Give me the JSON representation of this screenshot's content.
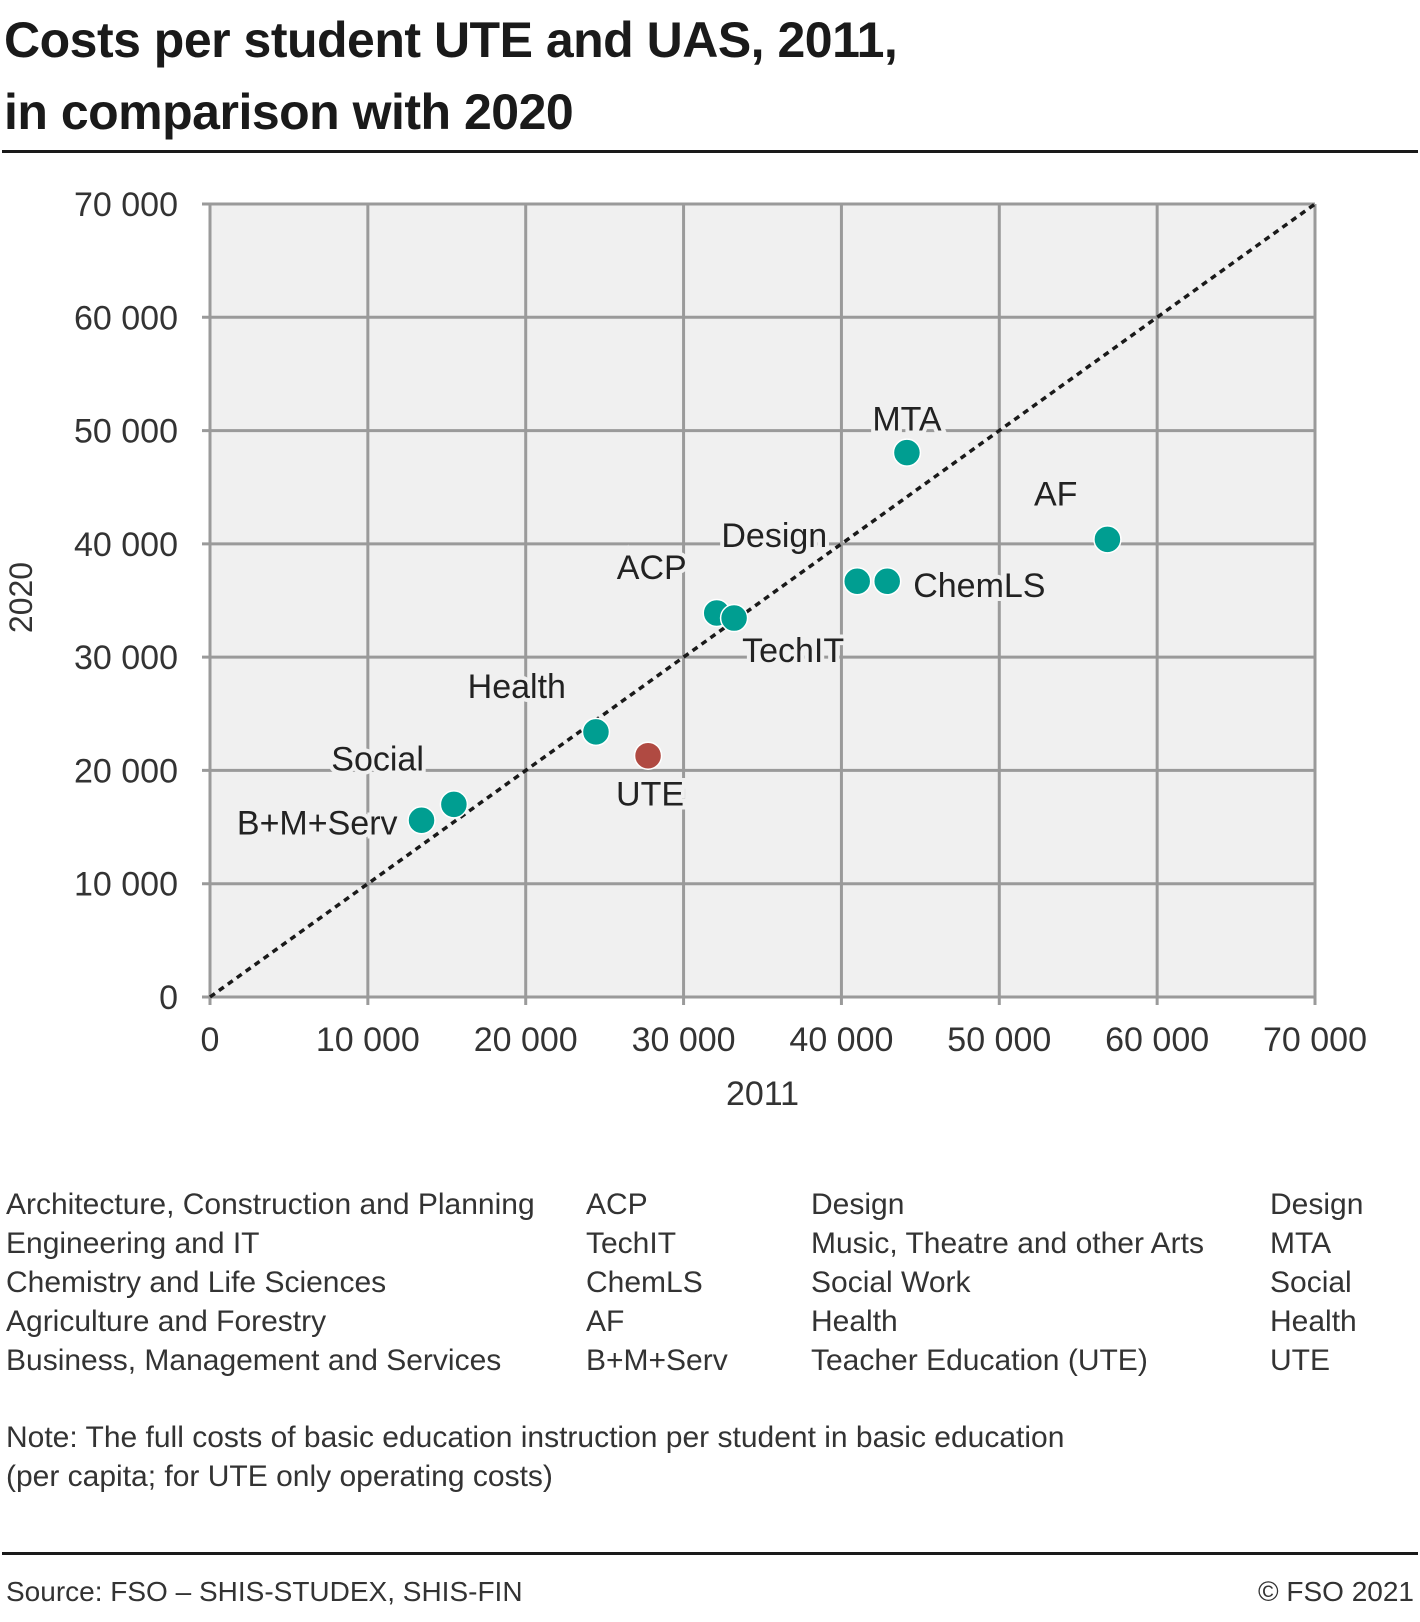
{
  "title_lines": [
    "Costs per student UTE and UAS, 2011,",
    "in comparison with 2020"
  ],
  "colors": {
    "uas_point": "#009e91",
    "ute_point": "#b04a42",
    "plot_background": "#f0f0f0",
    "grid": "#9a9a9a",
    "diagonal": "#1a1a1a"
  },
  "chart_data": {
    "type": "scatter",
    "title": "Costs per student UTE and UAS, 2011, in comparison with 2020",
    "xlabel": "2011",
    "ylabel": "2020",
    "xlim": [
      0,
      70000
    ],
    "ylim": [
      0,
      70000
    ],
    "xticks": [
      0,
      10000,
      20000,
      30000,
      40000,
      50000,
      60000,
      70000
    ],
    "yticks": [
      0,
      10000,
      20000,
      30000,
      40000,
      50000,
      60000,
      70000
    ],
    "xtick_labels": [
      "0",
      "10 000",
      "20 000",
      "30 000",
      "40 000",
      "50 000",
      "60 000",
      "70 000"
    ],
    "ytick_labels": [
      "0",
      "10 000",
      "20 000",
      "30 000",
      "40 000",
      "50 000",
      "60 000",
      "70 000"
    ],
    "grid": true,
    "reference_line": {
      "type": "diagonal",
      "style": "dotted",
      "from": [
        0,
        0
      ],
      "to": [
        70000,
        70000
      ]
    },
    "points": [
      {
        "label": "B+M+Serv",
        "x": 13400,
        "y": 15600,
        "group": "UAS",
        "label_pos": "left"
      },
      {
        "label": "Social",
        "x": 15450,
        "y": 17000,
        "group": "UAS",
        "label_pos": "top-left"
      },
      {
        "label": "Health",
        "x": 24450,
        "y": 23400,
        "group": "UAS",
        "label_pos": "top-left"
      },
      {
        "label": "UTE",
        "x": 27750,
        "y": 21300,
        "group": "UTE",
        "label_pos": "bottom"
      },
      {
        "label": "ACP",
        "x": 32100,
        "y": 33900,
        "group": "UAS",
        "label_pos": "top-left"
      },
      {
        "label": "TechIT",
        "x": 33200,
        "y": 33450,
        "group": "UAS",
        "label_pos": "bottom-right"
      },
      {
        "label": "Design",
        "x": 41000,
        "y": 36700,
        "group": "UAS",
        "label_pos": "top-left"
      },
      {
        "label": "ChemLS",
        "x": 42900,
        "y": 36700,
        "group": "UAS",
        "label_pos": "right"
      },
      {
        "label": "MTA",
        "x": 44150,
        "y": 48050,
        "group": "UAS",
        "label_pos": "top"
      },
      {
        "label": "AF",
        "x": 56850,
        "y": 40400,
        "group": "UAS",
        "label_pos": "top-left"
      }
    ]
  },
  "legend": [
    [
      "Architecture, Construction and Planning",
      "ACP",
      "Design",
      "Design"
    ],
    [
      "Engineering and IT",
      "TechIT",
      "Music, Theatre and other Arts",
      "MTA"
    ],
    [
      "Chemistry and Life Sciences",
      "ChemLS",
      "Social Work",
      "Social"
    ],
    [
      "Agriculture and Forestry",
      "AF",
      "Health",
      "Health"
    ],
    [
      "Business, Management and Services",
      "B+M+Serv",
      "Teacher Education (UTE)",
      "UTE"
    ]
  ],
  "note_lines": [
    "Note: The full costs of basic education instruction per student in basic education",
    "(per capita; for UTE only operating costs)"
  ],
  "source": "Source: FSO – SHIS-STUDEX, SHIS-FIN",
  "copyright": "© FSO 2021"
}
